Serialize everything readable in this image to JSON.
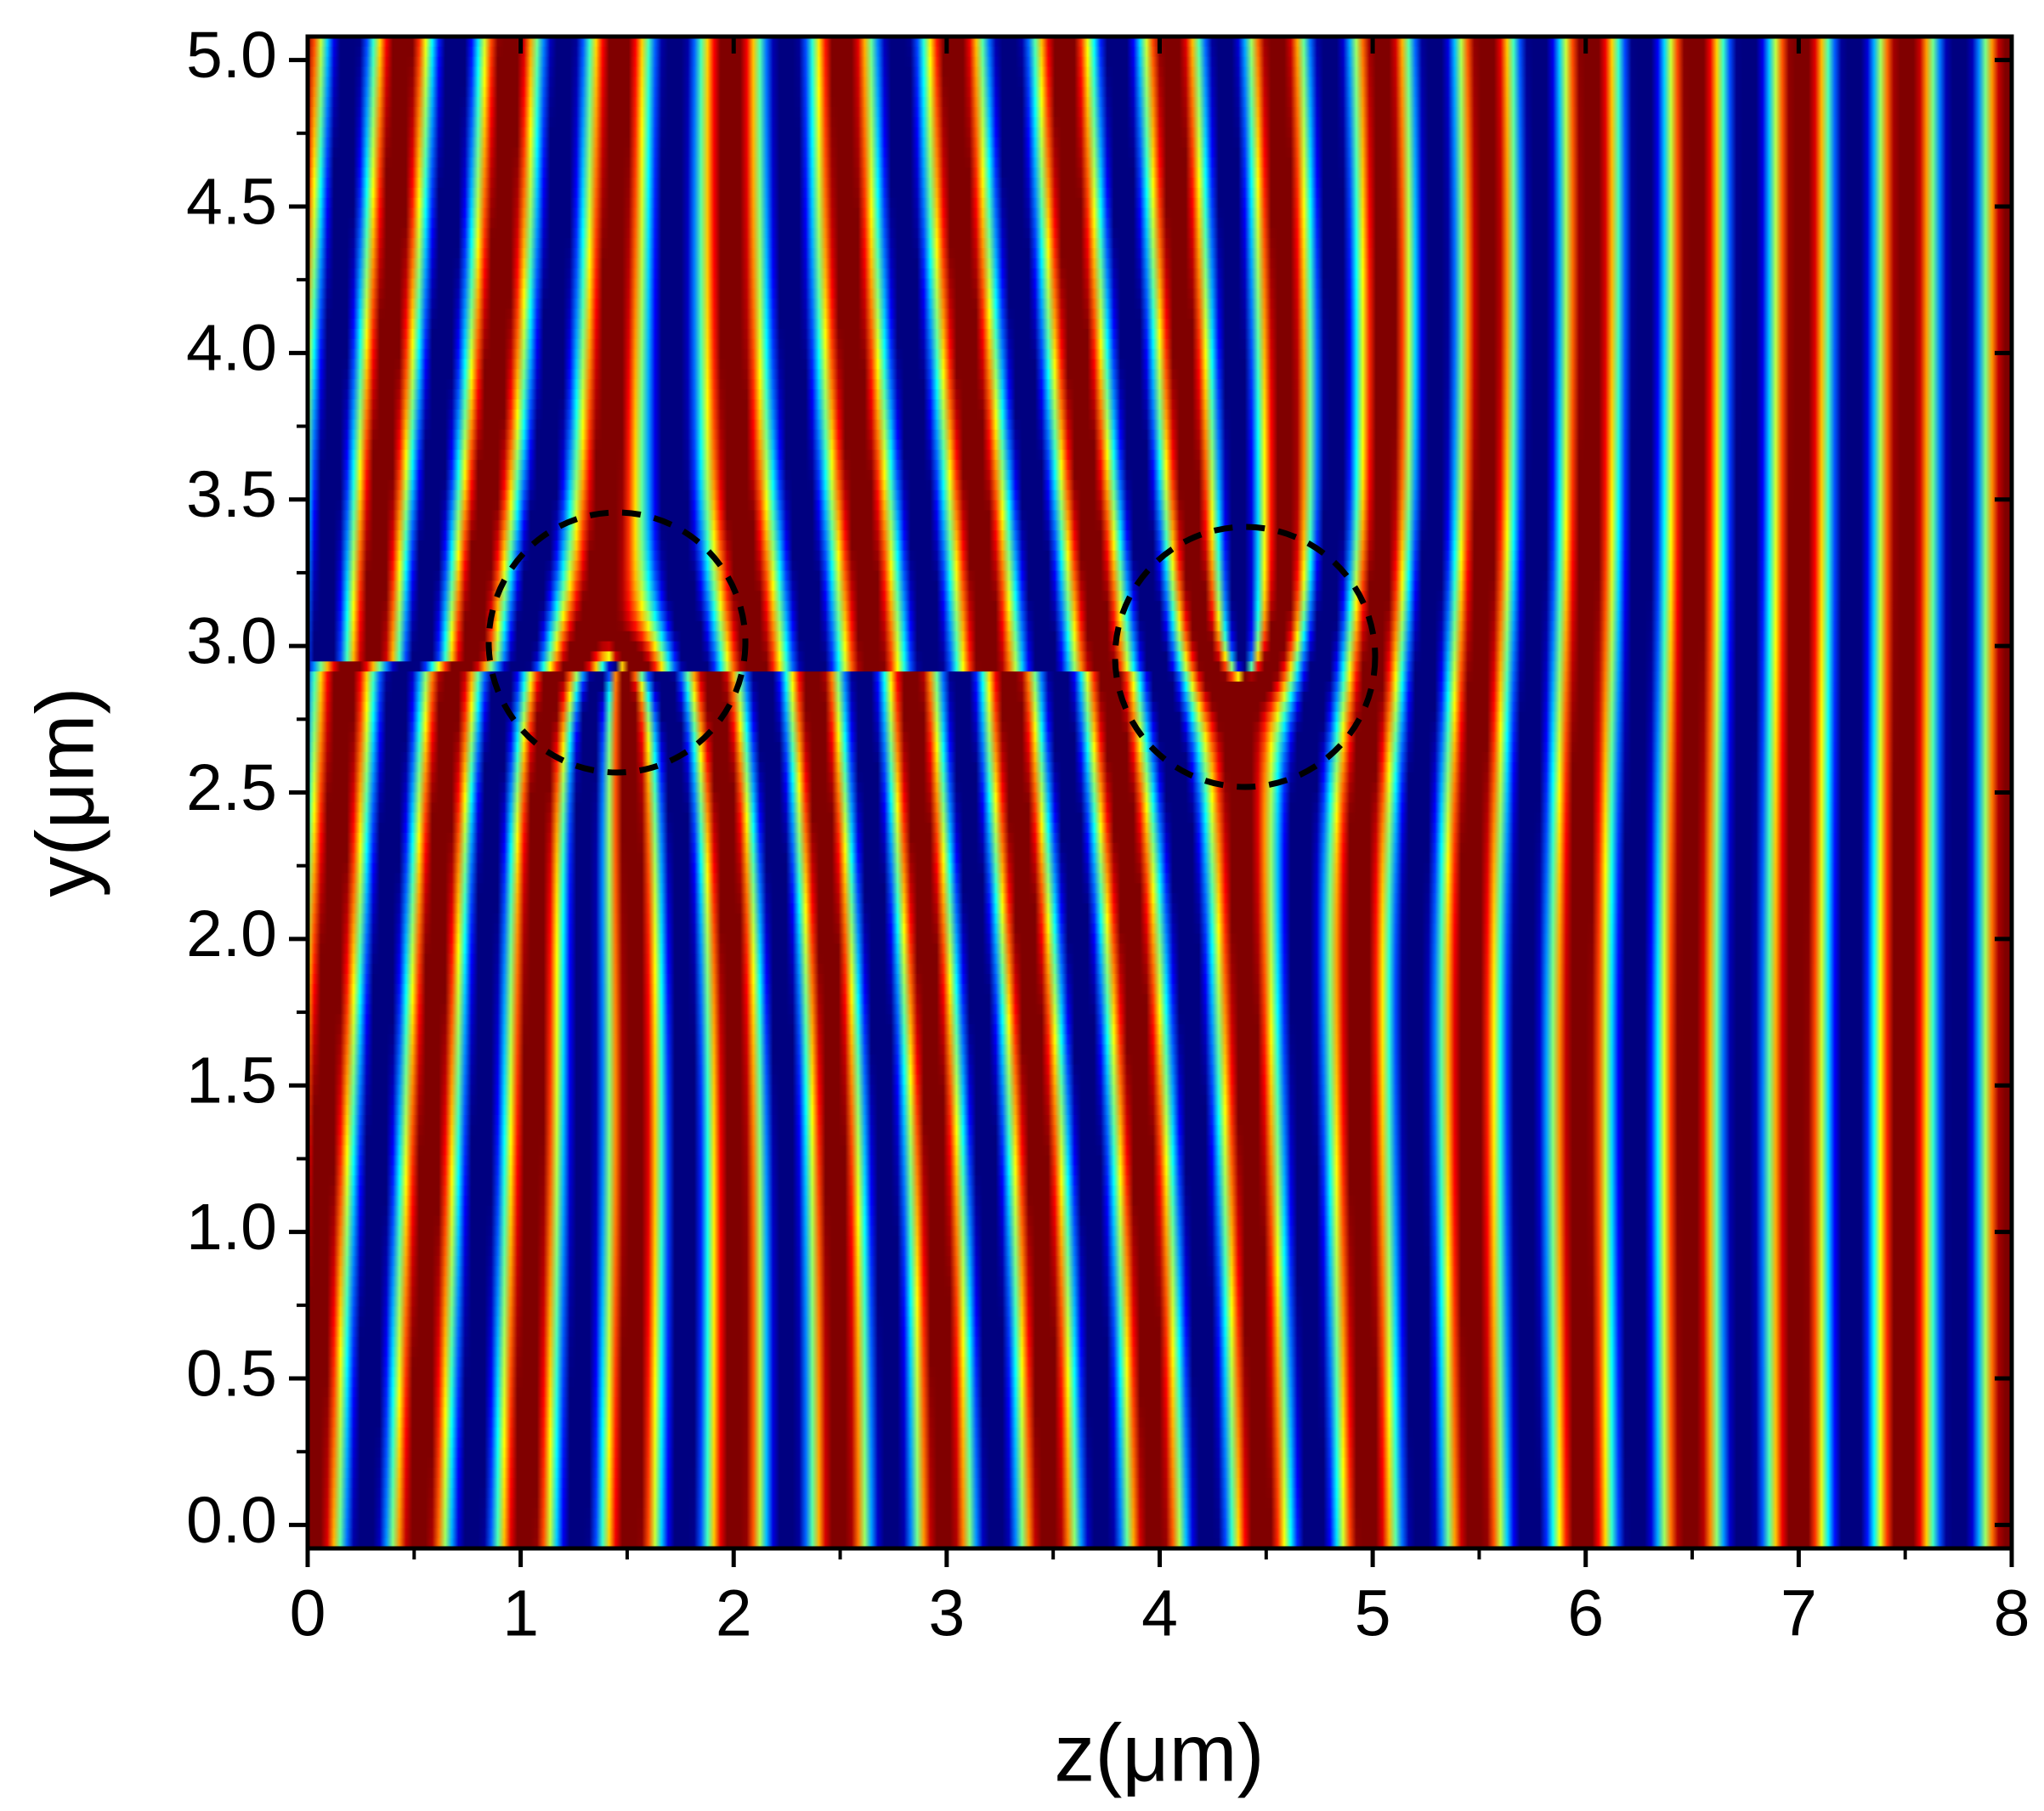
{
  "chart_data": {
    "type": "field",
    "xlabel": "z(μm)",
    "ylabel": "y(μm)",
    "xlim": [
      0,
      8
    ],
    "ylim": [
      -0.08,
      5.08
    ],
    "xticks": [
      0,
      1,
      2,
      3,
      4,
      5,
      6,
      7,
      8
    ],
    "yticks": [
      {
        "value": 0,
        "label": "0.0"
      },
      0.5,
      {
        "value": 1,
        "label": "1.0"
      },
      1.5,
      {
        "value": 2,
        "label": "2.0"
      },
      2.5,
      {
        "value": 3,
        "label": "3.0"
      },
      3.5,
      {
        "value": 4,
        "label": "4.0"
      },
      4.5,
      {
        "value": 5,
        "label": "5.0"
      }
    ]
  }
}
